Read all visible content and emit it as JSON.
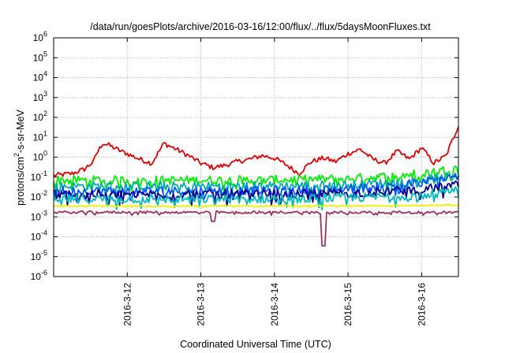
{
  "chart_data": {
    "type": "line",
    "title": "/data/run/goesPlots/archive/2016-03-16/12:00/flux/../flux/5daysMoonFluxes.txt",
    "xlabel": "Coordinated Universal Time (UTC)",
    "ylabel_parts": [
      "protons/cm",
      "2",
      "-s-sr-MeV"
    ],
    "x_range_days": [
      "2016-03-11T00:00",
      "2016-03-16T12:00"
    ],
    "x_tick_labels": [
      "2016-3-12",
      "2016-3-13",
      "2016-3-14",
      "2016-3-15",
      "2016-3-16"
    ],
    "y_scale": "log",
    "ylim": [
      1e-06,
      1000000.0
    ],
    "y_tick_exponents": [
      -6,
      -5,
      -4,
      -3,
      -2,
      -1,
      0,
      1,
      2,
      3,
      4,
      5,
      6
    ],
    "y_tick_base": "10",
    "grid": true,
    "legend": "none",
    "series": [
      {
        "color": "#e00000",
        "x": [
          "03-11 00:00",
          "03-11 06:00",
          "03-11 10:00",
          "03-11 13:00",
          "03-11 14:00",
          "03-11 16:00",
          "03-11 18:00",
          "03-11 22:00",
          "03-12 00:00",
          "03-12 04:00",
          "03-12 08:00",
          "03-12 12:00",
          "03-12 16:00",
          "03-12 20:00",
          "03-13 00:00",
          "03-13 04:00",
          "03-13 08:00",
          "03-13 12:00",
          "03-13 16:00",
          "03-13 20:00",
          "03-14 00:00",
          "03-14 04:00",
          "03-14 08:00",
          "03-14 12:00",
          "03-14 16:00",
          "03-14 20:00",
          "03-15 00:00",
          "03-15 04:00",
          "03-15 08:00",
          "03-15 12:00",
          "03-15 16:00",
          "03-15 20:00",
          "03-16 00:00",
          "03-16 04:00",
          "03-16 08:00",
          "03-16 12:00"
        ],
        "y": [
          0.12,
          0.15,
          0.25,
          0.6,
          1.5,
          5,
          4,
          2,
          1.5,
          0.8,
          0.5,
          5,
          2.5,
          1.2,
          0.5,
          0.3,
          0.4,
          0.6,
          0.8,
          1.2,
          0.9,
          0.4,
          0.15,
          0.6,
          0.9,
          0.6,
          1.5,
          2.5,
          0.8,
          0.5,
          2,
          0.8,
          3,
          0.5,
          1.2,
          40
        ]
      },
      {
        "color": "#00ee00",
        "y_base": 0.07,
        "y_end": 0.3
      },
      {
        "color": "#00aaaa",
        "y_base": 0.035,
        "y_end": 0.12
      },
      {
        "color": "#0055ff",
        "y_base": 0.02,
        "y_end": 0.12
      },
      {
        "color": "#000090",
        "y_base": 0.014,
        "y_end": 0.04
      },
      {
        "color": "#00bbbb",
        "y_base": 0.008,
        "y_end": 0.02
      },
      {
        "color": "#f0f000",
        "y_base": 0.0035,
        "y_end": 0.004
      },
      {
        "color": "#a03060",
        "y_base": 0.0017,
        "y_end": 0.0017,
        "dips": [
          [
            "03-13 04:00",
            0.0006
          ],
          [
            "03-14 16:00",
            3.5e-05
          ]
        ]
      }
    ]
  }
}
